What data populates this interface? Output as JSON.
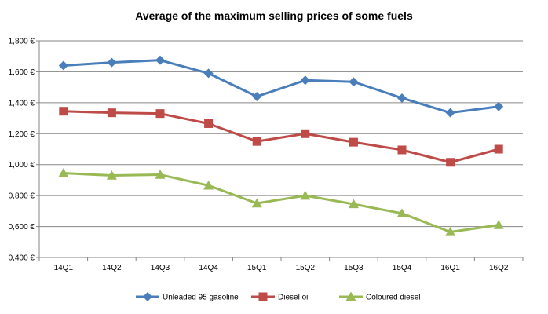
{
  "chart_data": {
    "type": "line",
    "title": "Average of the maximum selling prices of some fuels",
    "xlabel": "",
    "ylabel": "",
    "categories": [
      "14Q1",
      "14Q2",
      "14Q3",
      "14Q4",
      "15Q1",
      "15Q2",
      "15Q3",
      "15Q4",
      "16Q1",
      "16Q2"
    ],
    "ylim": [
      0.4,
      1.8
    ],
    "yticks": [
      {
        "value": 0.4,
        "label": "0,400 €"
      },
      {
        "value": 0.6,
        "label": "0,600 €"
      },
      {
        "value": 0.8,
        "label": "0,800 €"
      },
      {
        "value": 1.0,
        "label": "1,000 €"
      },
      {
        "value": 1.2,
        "label": "1,200 €"
      },
      {
        "value": 1.4,
        "label": "1,400 €"
      },
      {
        "value": 1.6,
        "label": "1,600 €"
      },
      {
        "value": 1.8,
        "label": "1,800 €"
      }
    ],
    "grid": true,
    "legend": "bottom",
    "series": [
      {
        "name": "Unleaded 95 gasoline",
        "color": "#4A7EBB",
        "marker": "diamond",
        "values": [
          1.64,
          1.66,
          1.675,
          1.59,
          1.44,
          1.545,
          1.535,
          1.43,
          1.335,
          1.375
        ]
      },
      {
        "name": "Diesel oil",
        "color": "#BE4B48",
        "marker": "square",
        "values": [
          1.345,
          1.335,
          1.33,
          1.265,
          1.15,
          1.2,
          1.145,
          1.095,
          1.015,
          1.1
        ]
      },
      {
        "name": "Coloured diesel",
        "color": "#98B954",
        "marker": "triangle",
        "values": [
          0.945,
          0.93,
          0.935,
          0.865,
          0.75,
          0.8,
          0.745,
          0.685,
          0.565,
          0.61
        ]
      }
    ]
  }
}
